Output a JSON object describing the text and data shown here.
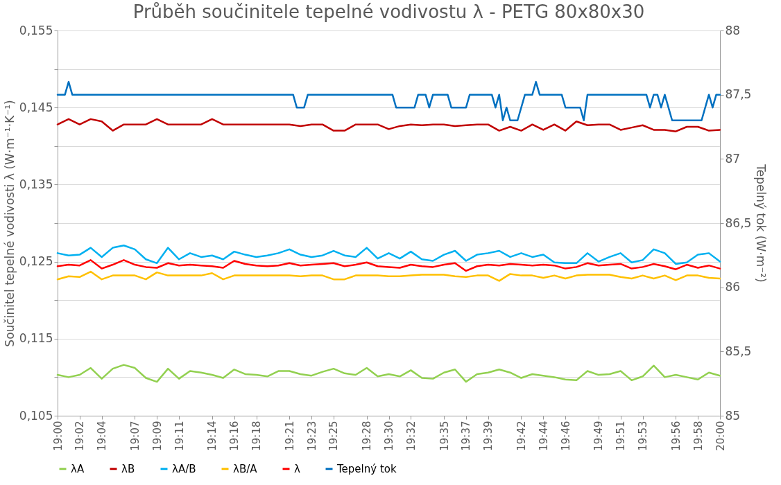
{
  "chart_data": {
    "type": "line",
    "title": "Průběh součinitele tepelné vodivostu λ - PETG 80x80x30",
    "ylabel": "Součinitel tepelné vodivosti λ (W·m⁻¹·K⁻¹)",
    "y2label": "Tepelný tok (W·m⁻²)",
    "x": [
      19,
      19.0167,
      19.0333,
      19.05,
      19.0667,
      19.0833,
      19.1,
      19.1167,
      19.1333,
      19.15,
      19.1667,
      19.1833,
      19.2,
      19.2167,
      19.2333,
      19.25,
      19.2667,
      19.2833,
      19.3,
      19.3167,
      19.3333,
      19.35,
      19.3667,
      19.3833,
      19.4,
      19.4167,
      19.4333,
      19.45,
      19.4667,
      19.4833,
      19.5,
      19.5167,
      19.5333,
      19.55,
      19.5667,
      19.5833,
      19.6,
      19.6167,
      19.6333,
      19.65,
      19.6667,
      19.6833,
      19.7,
      19.7167,
      19.7333,
      19.75,
      19.7667,
      19.7833,
      19.8,
      19.8167,
      19.8333,
      19.85,
      19.8667,
      19.8833,
      19.9,
      19.9167,
      19.9333,
      19.95,
      19.9667,
      19.9833,
      20
    ],
    "series": [
      {
        "name": "λA",
        "color": "#92d050",
        "values": [
          0.1103,
          0.11,
          0.1103,
          0.1112,
          0.1098,
          0.1111,
          0.1116,
          0.1112,
          0.1099,
          0.1094,
          0.1111,
          0.1098,
          0.1108,
          0.1106,
          0.1103,
          0.1099,
          0.111,
          0.1104,
          0.1103,
          0.1101,
          0.1108,
          0.1108,
          0.1104,
          0.1102,
          0.1107,
          0.1111,
          0.1105,
          0.1103,
          0.1112,
          0.1101,
          0.1104,
          0.1101,
          0.1109,
          0.1099,
          0.1098,
          0.1106,
          0.111,
          0.1094,
          0.1104,
          0.1106,
          0.111,
          0.1106,
          0.1099,
          0.1104,
          0.1102,
          0.11,
          0.1097,
          0.1096,
          0.1108,
          0.1103,
          0.1104,
          0.1108,
          0.1096,
          0.1101,
          0.1115,
          0.11,
          0.1103,
          0.11,
          0.1097,
          0.1106,
          0.1102
        ]
      },
      {
        "name": "λB",
        "color": "#c00000",
        "values": [
          0.1428,
          0.1435,
          0.1428,
          0.1435,
          0.1432,
          0.142,
          0.1428,
          0.1428,
          0.1428,
          0.1435,
          0.1428,
          0.1428,
          0.1428,
          0.1428,
          0.1435,
          0.1428,
          0.1428,
          0.1428,
          0.1428,
          0.1428,
          0.1428,
          0.1428,
          0.1426,
          0.1428,
          0.1428,
          0.142,
          0.142,
          0.1428,
          0.1428,
          0.1428,
          0.1422,
          0.1426,
          0.1428,
          0.1427,
          0.1428,
          0.1428,
          0.1426,
          0.1427,
          0.1428,
          0.1428,
          0.142,
          0.1425,
          0.142,
          0.1428,
          0.1421,
          0.1428,
          0.142,
          0.1432,
          0.1427,
          0.1428,
          0.1428,
          0.1421,
          0.1424,
          0.1427,
          0.1421,
          0.1421,
          0.1419,
          0.1425,
          0.1425,
          0.142,
          0.1421
        ]
      },
      {
        "name": "λA/B",
        "color": "#00b0f0",
        "values": [
          0.1261,
          0.1258,
          0.1259,
          0.1268,
          0.1256,
          0.1268,
          0.1271,
          0.1266,
          0.1253,
          0.1248,
          0.1268,
          0.1253,
          0.1261,
          0.1256,
          0.1258,
          0.1253,
          0.1263,
          0.1259,
          0.1256,
          0.1258,
          0.1261,
          0.1266,
          0.1259,
          0.1256,
          0.1258,
          0.1264,
          0.1258,
          0.1256,
          0.1268,
          0.1254,
          0.1261,
          0.1254,
          0.1263,
          0.1253,
          0.1251,
          0.1259,
          0.1264,
          0.1251,
          0.1259,
          0.1261,
          0.1264,
          0.1256,
          0.1261,
          0.1256,
          0.1259,
          0.1249,
          0.1248,
          0.1248,
          0.1261,
          0.125,
          0.1256,
          0.1261,
          0.1249,
          0.1252,
          0.1266,
          0.1261,
          0.1247,
          0.1249,
          0.1259,
          0.1261,
          0.125
        ]
      },
      {
        "name": "λB/A",
        "color": "#ffc000",
        "values": [
          0.1227,
          0.1231,
          0.123,
          0.1237,
          0.1227,
          0.1232,
          0.1232,
          0.1232,
          0.1227,
          0.1236,
          0.1232,
          0.1232,
          0.1232,
          0.1232,
          0.1235,
          0.1227,
          0.1232,
          0.1232,
          0.1232,
          0.1232,
          0.1232,
          0.1232,
          0.1231,
          0.1232,
          0.1232,
          0.1227,
          0.1227,
          0.1232,
          0.1232,
          0.1232,
          0.1231,
          0.1231,
          0.1232,
          0.1233,
          0.1233,
          0.1233,
          0.1231,
          0.123,
          0.1232,
          0.1232,
          0.1225,
          0.1234,
          0.1232,
          0.1232,
          0.1229,
          0.1232,
          0.1228,
          0.1232,
          0.1233,
          0.1233,
          0.1233,
          0.123,
          0.1228,
          0.1232,
          0.1228,
          0.1232,
          0.1226,
          0.1232,
          0.1232,
          0.1229,
          0.1228
        ]
      },
      {
        "name": "λ",
        "color": "#ff0000",
        "values": [
          0.1244,
          0.1246,
          0.1245,
          0.1252,
          0.1241,
          0.1246,
          0.1252,
          0.1246,
          0.1243,
          0.1242,
          0.1248,
          0.1245,
          0.1246,
          0.1245,
          0.1244,
          0.1242,
          0.1251,
          0.1247,
          0.1245,
          0.1244,
          0.1245,
          0.1248,
          0.1245,
          0.1246,
          0.1247,
          0.1248,
          0.1244,
          0.1246,
          0.1249,
          0.1244,
          0.1243,
          0.1242,
          0.1246,
          0.1244,
          0.1243,
          0.1246,
          0.1248,
          0.1238,
          0.1244,
          0.1246,
          0.1245,
          0.1247,
          0.1246,
          0.1245,
          0.1246,
          0.1245,
          0.1241,
          0.1243,
          0.1248,
          0.1245,
          0.1246,
          0.1247,
          0.1241,
          0.1243,
          0.1247,
          0.1244,
          0.124,
          0.1246,
          0.1242,
          0.1245,
          0.1241
        ]
      },
      {
        "name": "Tepelný tok",
        "color": "#0070c0",
        "axis": "y2",
        "x": [
          19,
          19.0111,
          19.0167,
          19.0222,
          19.3556,
          19.3611,
          19.3722,
          19.3778,
          19.5056,
          19.5111,
          19.5389,
          19.5444,
          19.5556,
          19.5611,
          19.5667,
          19.5889,
          19.5944,
          19.6167,
          19.6222,
          19.6556,
          19.6611,
          19.6667,
          19.6722,
          19.6778,
          19.6833,
          19.6944,
          19.7056,
          19.7167,
          19.7222,
          19.7278,
          19.7611,
          19.7667,
          19.7889,
          19.7944,
          19.8,
          19.8889,
          19.8944,
          19.9,
          19.9056,
          19.9111,
          19.9167,
          19.9278,
          19.9722,
          19.9833,
          19.9889,
          19.9944,
          20
        ],
        "values": [
          87.5,
          87.5,
          87.6,
          87.5,
          87.5,
          87.4,
          87.4,
          87.5,
          87.5,
          87.4,
          87.4,
          87.5,
          87.5,
          87.4,
          87.5,
          87.5,
          87.4,
          87.4,
          87.5,
          87.5,
          87.4,
          87.5,
          87.3,
          87.4,
          87.3,
          87.3,
          87.5,
          87.5,
          87.6,
          87.5,
          87.5,
          87.4,
          87.4,
          87.3,
          87.5,
          87.5,
          87.4,
          87.5,
          87.5,
          87.4,
          87.5,
          87.3,
          87.3,
          87.5,
          87.4,
          87.5,
          87.5
        ]
      }
    ],
    "xlim": [
      19,
      20
    ],
    "xticks": [
      {
        "value": 19,
        "label": "19:00"
      },
      {
        "value": 19.0333,
        "label": "19:02"
      },
      {
        "value": 19.0667,
        "label": "19:04"
      },
      {
        "value": 19.1167,
        "label": "19:07"
      },
      {
        "value": 19.15,
        "label": "19:09"
      },
      {
        "value": 19.1833,
        "label": "19:11"
      },
      {
        "value": 19.2333,
        "label": "19:14"
      },
      {
        "value": 19.2667,
        "label": "19:16"
      },
      {
        "value": 19.3,
        "label": "19:18"
      },
      {
        "value": 19.35,
        "label": "19:21"
      },
      {
        "value": 19.3833,
        "label": "19:23"
      },
      {
        "value": 19.4167,
        "label": "19:25"
      },
      {
        "value": 19.4667,
        "label": "19:28"
      },
      {
        "value": 19.5,
        "label": "19:30"
      },
      {
        "value": 19.5333,
        "label": "19:32"
      },
      {
        "value": 19.5833,
        "label": "19:35"
      },
      {
        "value": 19.6167,
        "label": "19:37"
      },
      {
        "value": 19.65,
        "label": "19:39"
      },
      {
        "value": 19.7,
        "label": "19:42"
      },
      {
        "value": 19.7333,
        "label": "19:44"
      },
      {
        "value": 19.7667,
        "label": "19:46"
      },
      {
        "value": 19.8167,
        "label": "19:49"
      },
      {
        "value": 19.85,
        "label": "19:51"
      },
      {
        "value": 19.8833,
        "label": "19:53"
      },
      {
        "value": 19.9333,
        "label": "19:56"
      },
      {
        "value": 19.9667,
        "label": "19:58"
      },
      {
        "value": 20,
        "label": "20:00"
      }
    ],
    "ylim": [
      0.105,
      0.155
    ],
    "yticks": [
      {
        "value": 0.105,
        "label": "0,105"
      },
      {
        "value": 0.11,
        "label": null
      },
      {
        "value": 0.115,
        "label": "0,115"
      },
      {
        "value": 0.12,
        "label": null
      },
      {
        "value": 0.125,
        "label": "0,125"
      },
      {
        "value": 0.13,
        "label": null
      },
      {
        "value": 0.135,
        "label": "0,135"
      },
      {
        "value": 0.14,
        "label": null
      },
      {
        "value": 0.145,
        "label": "0,145"
      },
      {
        "value": 0.15,
        "label": null
      },
      {
        "value": 0.155,
        "label": "0,155"
      }
    ],
    "y2lim": [
      85,
      88
    ],
    "y2ticks": [
      85,
      {
        "value": 85.5,
        "label": "85,5"
      },
      86,
      {
        "value": 86.5,
        "label": "86,5"
      },
      87,
      {
        "value": 87.5,
        "label": "87,5"
      },
      88
    ],
    "grid": "y",
    "legend": "bottom",
    "line_style": "solid"
  }
}
